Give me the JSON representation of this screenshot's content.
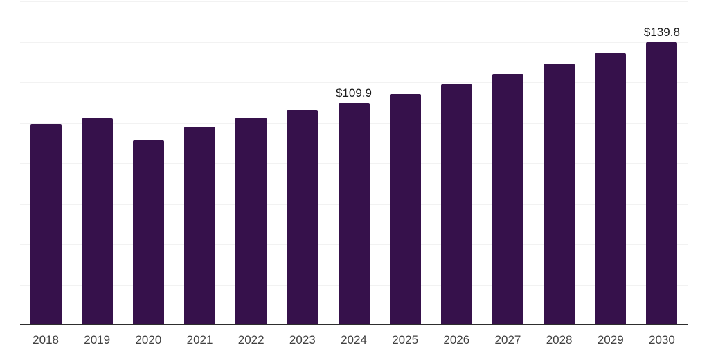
{
  "chart_data": {
    "type": "bar",
    "title": "",
    "xlabel": "",
    "ylabel": "",
    "categories": [
      "2018",
      "2019",
      "2020",
      "2021",
      "2022",
      "2023",
      "2024",
      "2025",
      "2026",
      "2027",
      "2028",
      "2029",
      "2030"
    ],
    "values": [
      99.3,
      102.3,
      91.4,
      98.2,
      102.6,
      106.3,
      109.9,
      114.3,
      119.0,
      124.0,
      129.1,
      134.2,
      139.8
    ],
    "data_labels": [
      "",
      "",
      "",
      "",
      "",
      "",
      "$109.9",
      "",
      "",
      "",
      "",
      "",
      "$139.8"
    ],
    "ylim": [
      0,
      160
    ],
    "gridline_interval": 20,
    "grid": true,
    "legend": false,
    "colors": {
      "bar": "#36114B",
      "gridline": "#f2f2f2",
      "axis_line": "#2e2e2e",
      "tick_label": "#404040",
      "data_label": "#1a1a1a",
      "background": "#ffffff"
    }
  }
}
